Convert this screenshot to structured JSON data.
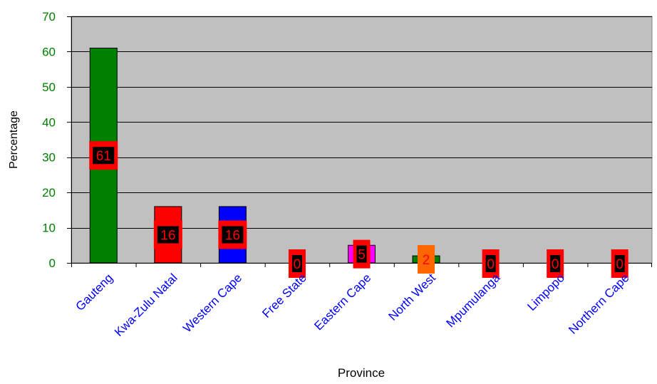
{
  "chart_data": {
    "type": "bar",
    "title": "",
    "xlabel": "Province",
    "ylabel": "Percentage",
    "ylim": [
      0,
      70
    ],
    "yticks": [
      0,
      10,
      20,
      30,
      40,
      50,
      60,
      70
    ],
    "grid": true,
    "legend": "none",
    "categories": [
      "Gauteng",
      "Kwa-Zulu Natal",
      "Western Cape",
      "Free State",
      "Eastern Cape",
      "North West",
      "Mpumulanga",
      "Limpopo",
      "Northern Cape"
    ],
    "values": [
      61,
      16,
      16,
      0,
      5,
      2,
      0,
      0,
      0
    ],
    "data_labels": [
      "61",
      "16",
      "16",
      "0",
      "5",
      "2",
      "0",
      "0",
      "0"
    ],
    "bar_colors": [
      "#008000",
      "#ff0000",
      "#0000ff",
      "#808080",
      "#ff00ff",
      "#008000",
      "#808080",
      "#808080",
      "#808080"
    ],
    "label_box_colors": [
      "#ff0000",
      "#ff0000",
      "#ff0000",
      "#ff0000",
      "#ff0000",
      "#ff6600",
      "#ff0000",
      "#ff0000",
      "#ff0000"
    ],
    "label_inner_colors": [
      "#000000",
      "#000000",
      "#000000",
      "#000000",
      "#000000",
      "#ff6600",
      "#000000",
      "#000000",
      "#000000"
    ],
    "label_text_colors": [
      "#ff0000",
      "#ff0000",
      "#ff0000",
      "#ff0000",
      "#ff0000",
      "#ff0000",
      "#ff0000",
      "#ff0000",
      "#ff0000"
    ],
    "colors": {
      "plot_background": "#c0c0c0",
      "gridline": "#000000",
      "ytick_text": "#008000",
      "xtick_text": "#0000ff",
      "axis_title": "#000000"
    }
  }
}
